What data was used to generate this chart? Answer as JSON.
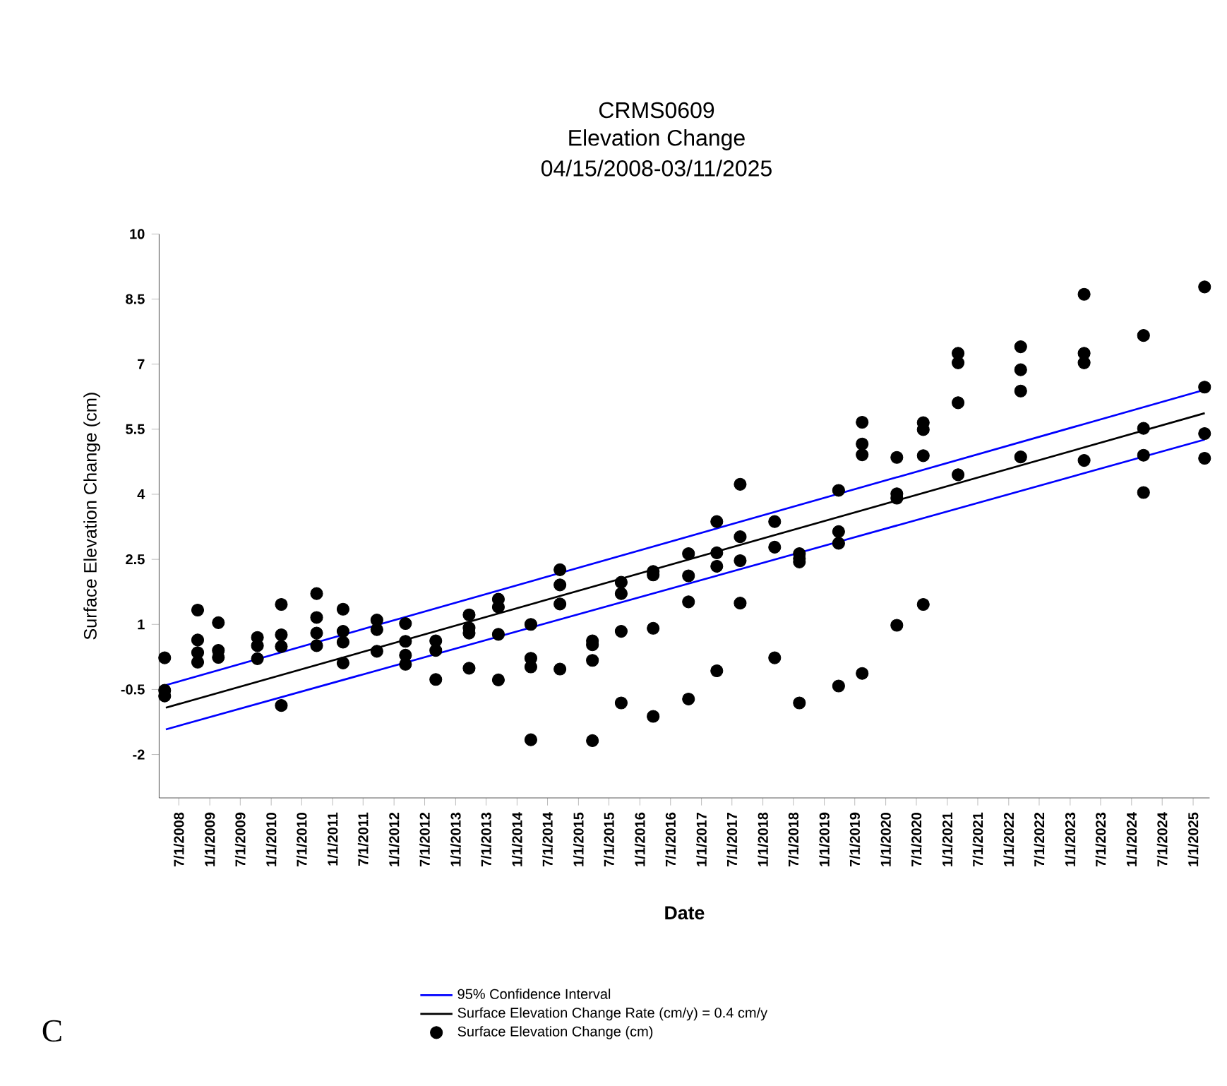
{
  "chart_data": {
    "type": "scatter",
    "title": "CRMS0609",
    "subtitle": "Elevation Change",
    "xlabel": "Date",
    "ylabel": "Surface Elevation Change (cm)",
    "annotations": [
      "04/15/2008-03/11/2025",
      "C"
    ],
    "xlim": [
      "2008-03-06",
      "2025-04-09"
    ],
    "ylim": [
      -3,
      10
    ],
    "yticks": [
      -2,
      -0.5,
      1,
      2.5,
      4,
      5.5,
      7,
      8.5,
      10
    ],
    "xticks": [
      {
        "value": "2008-07-01",
        "label": "7/1/2008"
      },
      {
        "value": "2009-01-01",
        "label": "1/1/2009"
      },
      {
        "value": "2009-07-01",
        "label": "7/1/2009"
      },
      {
        "value": "2010-01-01",
        "label": "1/1/2010"
      },
      {
        "value": "2010-07-01",
        "label": "7/1/2010"
      },
      {
        "value": "2011-01-01",
        "label": "1/1/2011"
      },
      {
        "value": "2011-07-01",
        "label": "7/1/2011"
      },
      {
        "value": "2012-01-01",
        "label": "1/1/2012"
      },
      {
        "value": "2012-07-01",
        "label": "7/1/2012"
      },
      {
        "value": "2013-01-01",
        "label": "1/1/2013"
      },
      {
        "value": "2013-07-01",
        "label": "7/1/2013"
      },
      {
        "value": "2014-01-01",
        "label": "1/1/2014"
      },
      {
        "value": "2014-07-01",
        "label": "7/1/2014"
      },
      {
        "value": "2015-01-01",
        "label": "1/1/2015"
      },
      {
        "value": "2015-07-01",
        "label": "7/1/2015"
      },
      {
        "value": "2016-01-01",
        "label": "1/1/2016"
      },
      {
        "value": "2016-07-01",
        "label": "7/1/2016"
      },
      {
        "value": "2017-01-01",
        "label": "1/1/2017"
      },
      {
        "value": "2017-07-01",
        "label": "7/1/2017"
      },
      {
        "value": "2018-01-01",
        "label": "1/1/2018"
      },
      {
        "value": "2018-07-01",
        "label": "7/1/2018"
      },
      {
        "value": "2019-01-01",
        "label": "1/1/2019"
      },
      {
        "value": "2019-07-01",
        "label": "7/1/2019"
      },
      {
        "value": "2020-01-01",
        "label": "1/1/2020"
      },
      {
        "value": "2020-07-01",
        "label": "7/1/2020"
      },
      {
        "value": "2021-01-01",
        "label": "1/1/2021"
      },
      {
        "value": "2021-07-01",
        "label": "7/1/2021"
      },
      {
        "value": "2022-01-01",
        "label": "1/1/2022"
      },
      {
        "value": "2022-07-01",
        "label": "7/1/2022"
      },
      {
        "value": "2023-01-01",
        "label": "1/1/2023"
      },
      {
        "value": "2023-07-01",
        "label": "7/1/2023"
      },
      {
        "value": "2024-01-01",
        "label": "1/1/2024"
      },
      {
        "value": "2024-07-01",
        "label": "7/1/2024"
      },
      {
        "value": "2025-01-01",
        "label": "1/1/2025"
      }
    ],
    "legend": "bottom",
    "series": [
      {
        "name": "95% Confidence Interval",
        "type": "line",
        "color": "#0000ff",
        "x": [
          "2008-04-15",
          "2025-03-11"
        ],
        "values": [
          -0.4,
          6.41
        ]
      },
      {
        "type": "line",
        "color": "#0000ff",
        "x": [
          "2008-04-15",
          "2025-03-11"
        ],
        "values": [
          -1.42,
          5.26
        ]
      },
      {
        "name": "Surface Elevation Change Rate (cm/y) = 0.4 cm/y",
        "type": "line",
        "color": "#000000",
        "x": [
          "2008-04-15",
          "2025-03-11"
        ],
        "values": [
          -0.92,
          5.87
        ]
      },
      {
        "name": "Surface Elevation Change (cm)",
        "marker": "circle",
        "color": "#000000",
        "x": [
          "2008-04-08",
          "2008-04-08",
          "2008-04-08",
          "2008-10-21",
          "2008-10-21",
          "2008-10-21",
          "2008-10-21",
          "2009-02-21",
          "2009-02-21",
          "2009-02-21",
          "2009-10-11",
          "2009-10-11",
          "2009-10-11",
          "2010-03-02",
          "2010-03-02",
          "2010-03-02",
          "2010-03-02",
          "2010-09-28",
          "2010-09-28",
          "2010-09-28",
          "2010-09-28",
          "2011-03-04",
          "2011-03-04",
          "2011-03-04",
          "2011-03-04",
          "2011-09-21",
          "2011-09-21",
          "2011-09-21",
          "2012-03-09",
          "2012-03-09",
          "2012-03-09",
          "2012-03-09",
          "2012-09-05",
          "2012-09-05",
          "2012-09-05",
          "2013-03-22",
          "2013-03-22",
          "2013-03-22",
          "2013-03-22",
          "2013-09-12",
          "2013-09-12",
          "2013-09-12",
          "2013-09-12",
          "2014-03-24",
          "2014-03-24",
          "2014-03-24",
          "2014-03-24",
          "2014-09-13",
          "2014-09-13",
          "2014-09-13",
          "2014-09-13",
          "2015-03-25",
          "2015-03-25",
          "2015-03-25",
          "2015-03-25",
          "2015-09-12",
          "2015-09-12",
          "2015-09-12",
          "2015-09-12",
          "2016-03-20",
          "2016-03-20",
          "2016-03-20",
          "2016-03-20",
          "2016-10-16",
          "2016-10-16",
          "2016-10-16",
          "2016-10-16",
          "2017-04-02",
          "2017-04-02",
          "2017-04-02",
          "2017-04-02",
          "2017-08-19",
          "2017-08-19",
          "2017-08-19",
          "2017-08-19",
          "2018-03-12",
          "2018-03-12",
          "2018-03-12",
          "2018-08-06",
          "2018-08-06",
          "2018-08-06",
          "2018-08-06",
          "2019-03-27",
          "2019-03-27",
          "2019-03-27",
          "2019-03-27",
          "2019-08-14",
          "2019-08-14",
          "2019-08-14",
          "2019-08-14",
          "2020-03-07",
          "2020-03-07",
          "2020-03-07",
          "2020-03-07",
          "2020-08-11",
          "2020-08-11",
          "2020-08-11",
          "2020-08-11",
          "2021-03-06",
          "2021-03-06",
          "2021-03-06",
          "2021-03-06",
          "2022-03-13",
          "2022-03-13",
          "2022-03-13",
          "2022-03-13",
          "2023-03-25",
          "2023-03-25",
          "2023-03-25",
          "2023-03-25",
          "2024-03-12",
          "2024-03-12",
          "2024-03-12",
          "2024-03-12",
          "2025-03-10",
          "2025-03-10",
          "2025-03-10",
          "2025-03-10"
        ],
        "values": [
          0.23,
          -0.52,
          -0.65,
          1.33,
          0.64,
          0.35,
          0.13,
          1.04,
          0.4,
          0.24,
          0.7,
          0.51,
          0.21,
          1.46,
          0.76,
          0.49,
          -0.87,
          1.71,
          1.16,
          0.8,
          0.51,
          1.35,
          0.84,
          0.59,
          0.11,
          1.1,
          0.88,
          0.38,
          1.02,
          0.61,
          0.29,
          0.08,
          0.62,
          0.4,
          -0.27,
          1.22,
          0.92,
          0.8,
          -0.01,
          1.58,
          1.4,
          0.77,
          -0.28,
          1.0,
          0.22,
          0.02,
          -1.66,
          2.26,
          1.91,
          1.47,
          -0.03,
          0.62,
          0.53,
          0.17,
          -1.68,
          1.97,
          1.71,
          0.84,
          -0.81,
          2.22,
          2.14,
          0.91,
          -1.12,
          2.63,
          2.12,
          1.52,
          -0.72,
          3.37,
          2.65,
          2.34,
          -0.07,
          4.23,
          3.02,
          2.47,
          1.49,
          3.37,
          2.78,
          0.23,
          2.63,
          2.52,
          2.44,
          -0.81,
          4.09,
          3.14,
          2.87,
          -0.42,
          5.66,
          5.16,
          4.91,
          -0.13,
          4.85,
          4.01,
          3.91,
          0.98,
          5.65,
          5.49,
          4.89,
          1.46,
          7.25,
          7.03,
          6.11,
          4.45,
          7.4,
          6.87,
          6.38,
          4.86,
          8.61,
          7.25,
          7.03,
          4.78,
          7.66,
          5.52,
          4.9,
          4.04,
          8.78,
          6.47,
          5.4,
          4.83
        ]
      }
    ]
  }
}
